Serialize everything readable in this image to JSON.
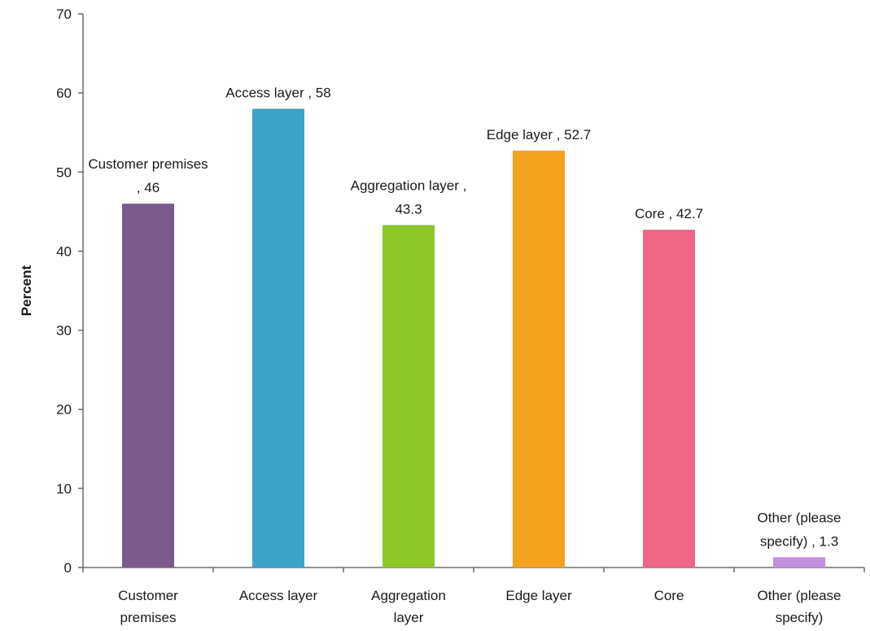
{
  "chart_data": {
    "type": "bar",
    "categories": [
      [
        "Customer",
        "premises"
      ],
      [
        "Access layer"
      ],
      [
        "Aggregation",
        "layer"
      ],
      [
        "Edge layer"
      ],
      [
        "Core"
      ],
      [
        "Other (please",
        "specify)"
      ]
    ],
    "values": [
      46,
      58,
      43.3,
      52.7,
      42.7,
      1.3
    ],
    "data_labels": [
      [
        "Customer premises",
        ", 46"
      ],
      [
        "Access layer , 58"
      ],
      [
        "Aggregation layer ,",
        "43.3"
      ],
      [
        "Edge layer , 52.7"
      ],
      [
        "Core , 42.7"
      ],
      [
        "Other (please",
        "specify) , 1.3"
      ]
    ],
    "colors": [
      "#7b5a8e",
      "#3ba3c6",
      "#8fc72b",
      "#f2a21e",
      "#ee6585",
      "#c48fe0"
    ],
    "ylabel": "Percent",
    "xlabel": "",
    "title": "",
    "ylim": [
      0,
      70
    ],
    "yticks": [
      0,
      10,
      20,
      30,
      40,
      50,
      60,
      70
    ],
    "grid": false,
    "legend": "none"
  }
}
